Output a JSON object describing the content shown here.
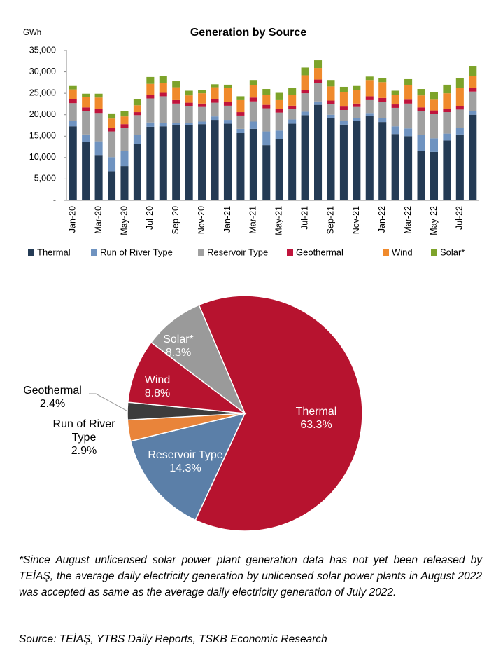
{
  "chart_data": [
    {
      "type": "stacked_bar",
      "title": "Generation by Source",
      "ylabel": "GWh",
      "categories": [
        "Jan-20",
        null,
        "Mar-20",
        null,
        "May-20",
        null,
        "Jul-20",
        null,
        "Sep-20",
        null,
        "Nov-20",
        null,
        "Jan-21",
        null,
        "Mar-21",
        null,
        "May-21",
        null,
        "Jul-21",
        null,
        "Sep-21",
        null,
        "Nov-21",
        null,
        "Jan-22",
        null,
        "Mar-22",
        null,
        "May-22",
        null,
        "Jul-22",
        null
      ],
      "series": [
        {
          "name": "Thermal",
          "color": "#243b55",
          "values": [
            17300,
            13700,
            10600,
            6800,
            8000,
            13100,
            17200,
            17300,
            17500,
            17500,
            17800,
            18800,
            17900,
            15700,
            16700,
            12900,
            14300,
            17900,
            19900,
            22300,
            19200,
            17700,
            18600,
            19700,
            18300,
            15500,
            15000,
            11500,
            11300,
            14000,
            15400,
            20000
          ]
        },
        {
          "name": "Run of River Type",
          "color": "#6f93c0",
          "values": [
            1200,
            1700,
            3200,
            3300,
            3600,
            2200,
            1000,
            800,
            600,
            500,
            600,
            800,
            900,
            1000,
            1700,
            3200,
            2000,
            1000,
            800,
            800,
            800,
            900,
            700,
            700,
            900,
            1800,
            1800,
            3800,
            3200,
            1600,
            1500,
            900
          ]
        },
        {
          "name": "Reservoir Type",
          "color": "#a0a0a0",
          "values": [
            4200,
            5500,
            6600,
            6000,
            5400,
            4600,
            5600,
            6200,
            4500,
            4000,
            3400,
            3200,
            3300,
            3100,
            4700,
            5400,
            4200,
            2500,
            4300,
            4300,
            2500,
            2500,
            2500,
            3000,
            3800,
            4300,
            5800,
            5600,
            5700,
            5000,
            4300,
            4500
          ]
        },
        {
          "name": "Geothermal",
          "color": "#c0143c",
          "values": [
            900,
            800,
            900,
            800,
            800,
            700,
            800,
            800,
            800,
            800,
            800,
            900,
            900,
            800,
            900,
            800,
            800,
            700,
            800,
            800,
            800,
            800,
            800,
            900,
            900,
            800,
            900,
            800,
            800,
            800,
            800,
            800
          ]
        },
        {
          "name": "Wind",
          "color": "#f08a2c",
          "values": [
            2300,
            2400,
            2700,
            2200,
            1800,
            1600,
            2600,
            2300,
            3000,
            1700,
            2400,
            2700,
            3200,
            2800,
            2900,
            2300,
            2100,
            2500,
            3400,
            2700,
            3300,
            3400,
            3200,
            3800,
            3700,
            2200,
            3400,
            2800,
            2500,
            3600,
            4300,
            2900
          ]
        },
        {
          "name": "Solar*",
          "color": "#7da32a",
          "values": [
            800,
            800,
            900,
            1200,
            1300,
            1400,
            1600,
            1600,
            1400,
            1100,
            800,
            700,
            800,
            900,
            1200,
            1400,
            1700,
            1700,
            1800,
            1800,
            1500,
            1200,
            900,
            800,
            900,
            1000,
            1400,
            1500,
            1800,
            2000,
            2200,
            2300
          ]
        }
      ],
      "ylim": [
        0,
        35000
      ],
      "yticks": [
        {
          "value": 0,
          "label": "-"
        },
        {
          "value": 5000,
          "label": "5,000"
        },
        {
          "value": 10000,
          "label": "10,000"
        },
        {
          "value": 15000,
          "label": "15,000"
        },
        {
          "value": 20000,
          "label": "20,000"
        },
        {
          "value": 25000,
          "label": "25,000"
        },
        {
          "value": 30000,
          "label": "30,000"
        },
        {
          "value": 35000,
          "label": "35,000"
        }
      ],
      "legend": "bottom"
    },
    {
      "type": "pie",
      "categories": [
        "Thermal",
        "Reservoir Type",
        "Run of River Type",
        "Geothermal",
        "Wind",
        "Solar*"
      ],
      "values": [
        63.3,
        14.3,
        2.9,
        2.4,
        8.8,
        8.3
      ],
      "value_labels": [
        "63.3%",
        "14.3%",
        "2.9%",
        "2.4%",
        "8.8%",
        "8.3%"
      ],
      "colors": [
        "#b7132f",
        "#5b7fa8",
        "#e9843a",
        "#3c3c3c",
        "#b7132f",
        "#9a9a9a"
      ]
    }
  ],
  "notes": "*Since August unlicensed solar power plant generation data has not yet been released by TEİAŞ, the average daily electricity generation by unlicensed solar power plants in August 2022 was accepted as same as the average daily electricity generation of July 2022.",
  "source": "Source: TEİAŞ, YTBS Daily Reports, TSKB Economic Research"
}
